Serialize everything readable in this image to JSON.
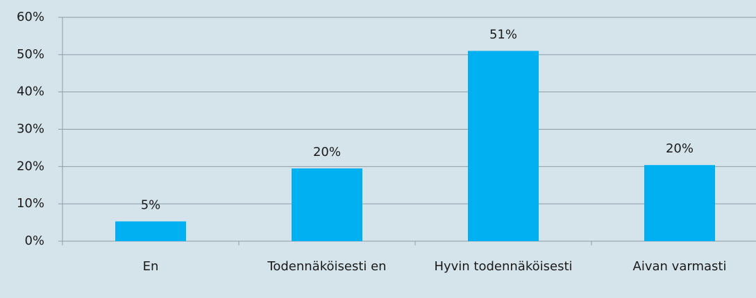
{
  "chart_data": {
    "type": "bar",
    "categories": [
      "En",
      "Todennäköisesti en",
      "Hyvin todennäköisesti",
      "Aivan varmasti"
    ],
    "values": [
      5.3,
      19.5,
      51,
      20.4
    ],
    "value_labels": [
      "5%",
      "20%",
      "51%",
      "20%"
    ],
    "color": "#00b0f0",
    "ylim": [
      0,
      60
    ],
    "yticks": [
      {
        "value": 0,
        "label": "0%"
      },
      {
        "value": 10,
        "label": "10%"
      },
      {
        "value": 20,
        "label": "20%"
      },
      {
        "value": 30,
        "label": "30%"
      },
      {
        "value": 40,
        "label": "40%"
      },
      {
        "value": 50,
        "label": "50%"
      },
      {
        "value": 60,
        "label": "60%"
      }
    ],
    "grid": true
  }
}
